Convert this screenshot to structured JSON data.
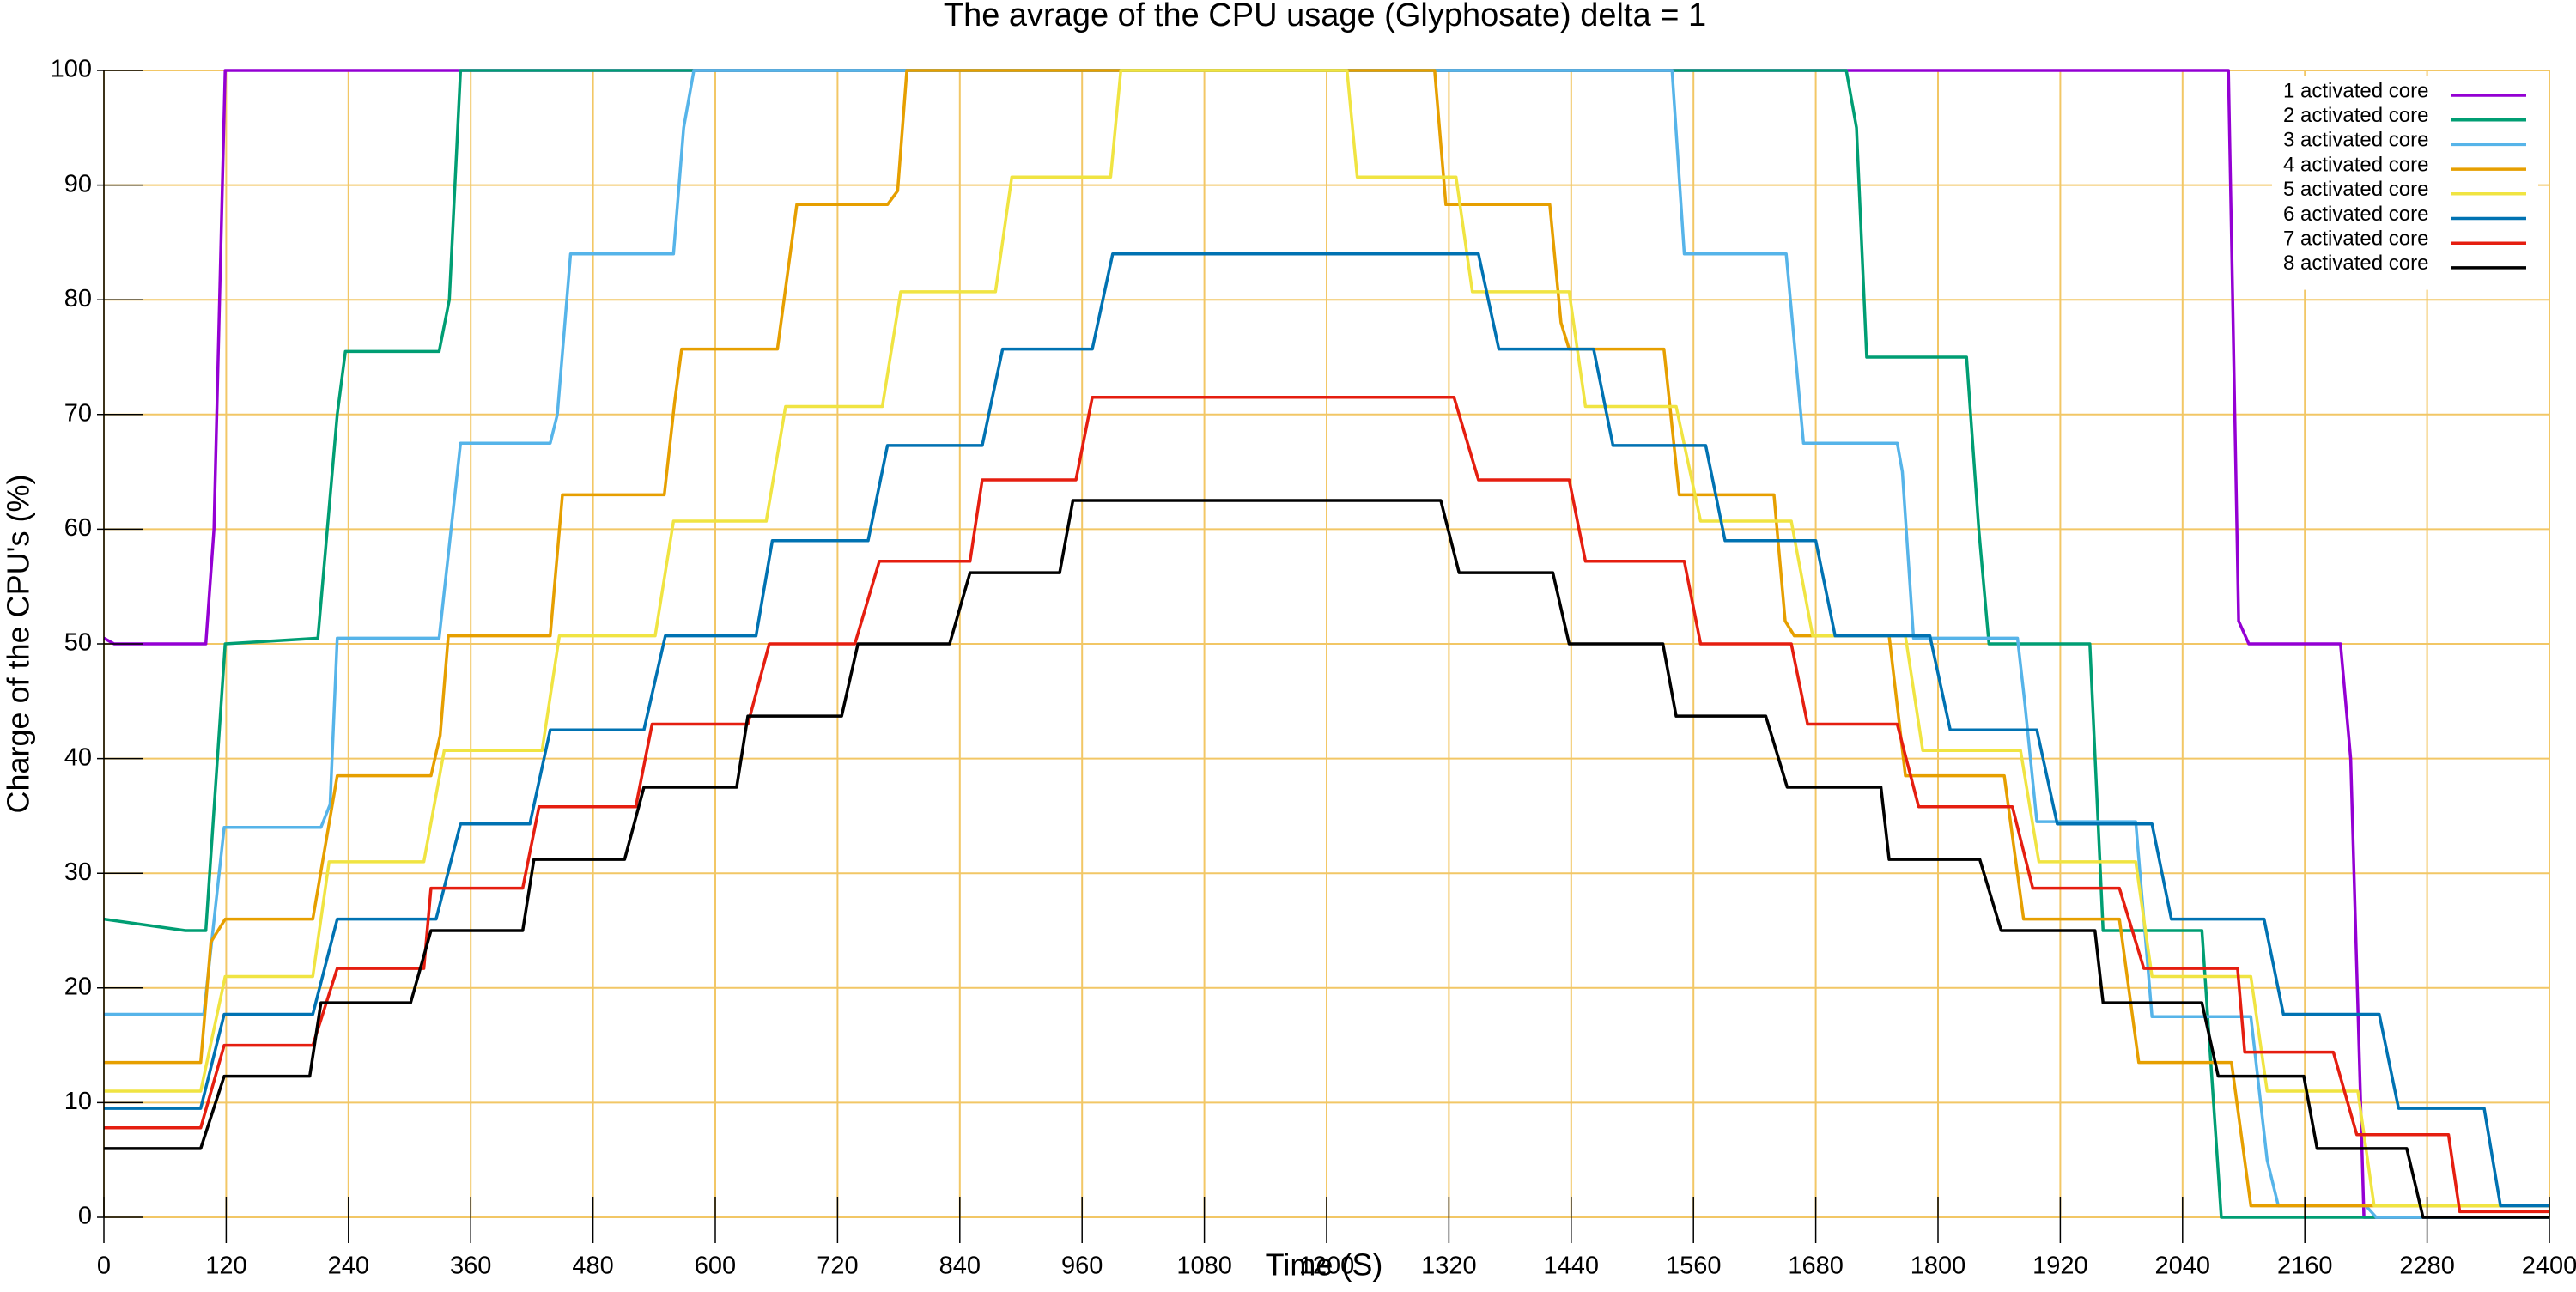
{
  "chart_data": {
    "type": "line",
    "title": "The avrage of the CPU usage (Glyphosate) delta = 1",
    "x_label": "Time (S)",
    "y_label": "Charge of the CPU's (%)",
    "xlim": [
      0,
      2400
    ],
    "ylim": [
      0,
      100
    ],
    "xticks": [
      0,
      120,
      240,
      360,
      480,
      600,
      720,
      840,
      960,
      1080,
      1200,
      1320,
      1440,
      1560,
      1680,
      1800,
      1920,
      2040,
      2160,
      2280,
      2400
    ],
    "yticks": [
      0,
      10,
      20,
      30,
      40,
      50,
      60,
      70,
      80,
      90,
      100
    ],
    "grid": true,
    "grid_color": "#f2c766",
    "legend": "upper right",
    "series": [
      {
        "name": "1 activated core",
        "color": "#9400d3",
        "x": [
          0,
          10,
          100,
          108,
          119,
          2085,
          2095,
          2105,
          2195,
          2205,
          2218,
          2400
        ],
        "values": [
          50.5,
          50,
          50,
          60,
          100,
          100,
          52,
          50,
          50,
          40,
          0,
          0
        ]
      },
      {
        "name": "2 activated core",
        "color": "#009e73",
        "x": [
          0,
          80,
          100,
          119,
          210,
          229,
          237,
          329,
          339,
          350,
          1710,
          1720,
          1730,
          1828,
          1840,
          1850,
          1949,
          1962,
          2059,
          2078,
          2400
        ],
        "values": [
          26,
          25,
          25,
          50,
          50.5,
          70,
          75.5,
          75.5,
          80,
          100,
          100,
          95,
          75,
          75,
          60,
          50,
          50,
          25,
          25,
          0,
          0
        ]
      },
      {
        "name": "3 activated core",
        "color": "#56b4e9",
        "x": [
          0,
          98,
          118,
          213,
          222,
          229,
          329,
          350,
          438,
          445,
          458,
          559,
          569,
          579,
          1539,
          1551,
          1651,
          1668,
          1760,
          1765,
          1776,
          1878,
          1885,
          1897,
          1994,
          2010,
          2107,
          2123,
          2134,
          2220,
          2230,
          2400
        ],
        "values": [
          17.7,
          17.7,
          34,
          34,
          36,
          50.5,
          50.5,
          67.5,
          67.5,
          70,
          84,
          84,
          95,
          100,
          100,
          84,
          84,
          67.5,
          67.5,
          65,
          50.5,
          50.5,
          45,
          34.5,
          34.5,
          17.5,
          17.5,
          5,
          1,
          1,
          0,
          0
        ]
      },
      {
        "name": "4 activated core",
        "color": "#e69f00",
        "x": [
          0,
          95,
          105,
          119,
          205,
          229,
          321,
          330,
          338,
          438,
          450,
          550,
          560,
          567,
          661,
          680,
          769,
          779,
          788,
          1306,
          1317,
          1419,
          1430,
          1438,
          1531,
          1546,
          1639,
          1650,
          1659,
          1752,
          1768,
          1865,
          1884,
          1978,
          1997,
          2088,
          2107,
          2400
        ],
        "values": [
          13.5,
          13.5,
          24,
          26,
          26,
          38.5,
          38.5,
          42,
          50.7,
          50.7,
          63,
          63,
          71,
          75.7,
          75.7,
          88.3,
          88.3,
          89.5,
          100,
          100,
          88.3,
          88.3,
          78,
          75.7,
          75.7,
          63,
          63,
          52,
          50.7,
          50.7,
          38.5,
          38.5,
          26,
          26,
          13.5,
          13.5,
          1,
          1
        ]
      },
      {
        "name": "5 activated core",
        "color": "#f0e442",
        "x": [
          0,
          95,
          119,
          205,
          221,
          314,
          334,
          430,
          447,
          541,
          559,
          650,
          669,
          764,
          782,
          875,
          891,
          988,
          998,
          1220,
          1230,
          1327,
          1343,
          1438,
          1454,
          1543,
          1567,
          1656,
          1677,
          1768,
          1785,
          1881,
          1899,
          1994,
          2010,
          2107,
          2123,
          2212,
          2228,
          2400
        ],
        "values": [
          11,
          11,
          21,
          21,
          31,
          31,
          40.7,
          40.7,
          50.7,
          50.7,
          60.7,
          60.7,
          70.7,
          70.7,
          80.7,
          80.7,
          90.7,
          90.7,
          100,
          100,
          90.7,
          90.7,
          80.7,
          80.7,
          70.7,
          70.7,
          60.7,
          60.7,
          50.7,
          50.7,
          40.7,
          40.7,
          31,
          31,
          21,
          21,
          11,
          11,
          1,
          1
        ]
      },
      {
        "name": "6 activated core",
        "color": "#0072b2",
        "x": [
          0,
          95,
          118,
          205,
          229,
          326,
          350,
          418,
          438,
          530,
          551,
          640,
          656,
          750,
          769,
          862,
          882,
          970,
          990,
          1349,
          1369,
          1462,
          1481,
          1572,
          1591,
          1680,
          1699,
          1792,
          1812,
          1897,
          1917,
          2010,
          2029,
          2120,
          2139,
          2233,
          2252,
          2336,
          2352,
          2400
        ],
        "values": [
          9.5,
          9.5,
          17.7,
          17.7,
          26,
          26,
          34.3,
          34.3,
          42.5,
          42.5,
          50.7,
          50.7,
          59,
          59,
          67.3,
          67.3,
          75.7,
          75.7,
          84,
          84,
          75.7,
          75.7,
          67.3,
          67.3,
          59,
          59,
          50.7,
          50.7,
          42.5,
          42.5,
          34.3,
          34.3,
          26,
          26,
          17.7,
          17.7,
          9.5,
          9.5,
          1,
          1
        ]
      },
      {
        "name": "7 activated core",
        "color": "#e51e10",
        "x": [
          0,
          95,
          118,
          205,
          229,
          314,
          321,
          411,
          427,
          522,
          538,
          632,
          653,
          737,
          761,
          850,
          862,
          954,
          970,
          1325,
          1349,
          1438,
          1454,
          1551,
          1567,
          1656,
          1672,
          1760,
          1781,
          1873,
          1893,
          1978,
          2002,
          2094,
          2101,
          2188,
          2211,
          2301,
          2312,
          2400
        ],
        "values": [
          7.8,
          7.8,
          15,
          15,
          21.7,
          21.7,
          28.7,
          28.7,
          35.8,
          35.8,
          43,
          43,
          50,
          50,
          57.2,
          57.2,
          64.3,
          64.3,
          71.5,
          71.5,
          64.3,
          64.3,
          57.2,
          57.2,
          50,
          50,
          43,
          43,
          35.8,
          35.8,
          28.7,
          28.7,
          21.7,
          21.7,
          14.4,
          14.4,
          7.2,
          7.2,
          0.5,
          0.5
        ]
      },
      {
        "name": "8 activated core",
        "color": "#000000",
        "x": [
          0,
          95,
          118,
          202,
          213,
          301,
          321,
          411,
          422,
          511,
          530,
          621,
          632,
          724,
          740,
          830,
          850,
          938,
          951,
          1312,
          1330,
          1422,
          1438,
          1530,
          1543,
          1631,
          1652,
          1744,
          1752,
          1841,
          1862,
          1954,
          1962,
          2059,
          2075,
          2159,
          2172,
          2260,
          2276,
          2400
        ],
        "values": [
          6,
          6,
          12.3,
          12.3,
          18.7,
          18.7,
          25,
          25,
          31.2,
          31.2,
          37.5,
          37.5,
          43.7,
          43.7,
          50,
          50,
          56.2,
          56.2,
          62.5,
          62.5,
          56.2,
          56.2,
          50,
          50,
          43.7,
          43.7,
          37.5,
          37.5,
          31.2,
          31.2,
          25,
          25,
          18.7,
          18.7,
          12.3,
          12.3,
          6,
          6,
          0,
          0
        ]
      }
    ]
  }
}
